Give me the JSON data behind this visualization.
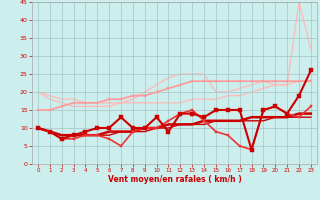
{
  "xlabel": "Vent moyen/en rafales ( km/h )",
  "bg_color": "#cceeed",
  "grid_color": "#aacccc",
  "xlim": [
    -0.5,
    23.5
  ],
  "ylim": [
    0,
    45
  ],
  "yticks": [
    0,
    5,
    10,
    15,
    20,
    25,
    30,
    35,
    40,
    45
  ],
  "xticks": [
    0,
    1,
    2,
    3,
    4,
    5,
    6,
    7,
    8,
    9,
    10,
    11,
    12,
    13,
    14,
    15,
    16,
    17,
    18,
    19,
    20,
    21,
    22,
    23
  ],
  "series": [
    {
      "x": [
        0,
        1,
        2,
        3,
        4,
        5,
        6,
        7,
        8,
        9,
        10,
        11,
        12,
        13,
        14,
        15,
        16,
        17,
        18,
        19,
        20,
        21,
        22,
        23
      ],
      "y": [
        20,
        19,
        18,
        18,
        17,
        17,
        17,
        17,
        17,
        17,
        17,
        17,
        17,
        18,
        18,
        18,
        19,
        19,
        20,
        21,
        22,
        22,
        23,
        23
      ],
      "color": "#ffbbbb",
      "lw": 1.0,
      "marker": null,
      "zorder": 1
    },
    {
      "x": [
        0,
        1,
        2,
        3,
        4,
        5,
        6,
        7,
        8,
        9,
        10,
        11,
        12,
        13,
        14,
        15,
        16,
        17,
        18,
        19,
        20,
        21,
        22,
        23
      ],
      "y": [
        20,
        18,
        17,
        16,
        16,
        16,
        16,
        17,
        18,
        20,
        22,
        24,
        25,
        25,
        25,
        20,
        20,
        21,
        22,
        23,
        22,
        22,
        45,
        32
      ],
      "color": "#ffbbbb",
      "lw": 1.0,
      "marker": null,
      "zorder": 1
    },
    {
      "x": [
        0,
        1,
        2,
        3,
        4,
        5,
        6,
        7,
        8,
        9,
        10,
        11,
        12,
        13,
        14,
        15,
        16,
        17,
        18,
        19,
        20,
        21,
        22,
        23
      ],
      "y": [
        15,
        15,
        16,
        17,
        17,
        17,
        18,
        18,
        19,
        19,
        20,
        21,
        22,
        23,
        23,
        23,
        23,
        23,
        23,
        23,
        23,
        23,
        23,
        23
      ],
      "color": "#ff9999",
      "lw": 1.2,
      "marker": "s",
      "ms": 2.0,
      "zorder": 2
    },
    {
      "x": [
        0,
        1,
        2,
        3,
        4,
        5,
        6,
        7,
        8,
        9,
        10,
        11,
        12,
        13,
        14,
        15,
        16,
        17,
        18,
        19,
        20,
        21,
        22,
        23
      ],
      "y": [
        10,
        9,
        7,
        8,
        9,
        10,
        10,
        13,
        10,
        10,
        13,
        9,
        14,
        14,
        13,
        15,
        15,
        15,
        4,
        15,
        16,
        14,
        19,
        26
      ],
      "color": "#cc0000",
      "lw": 1.5,
      "marker": "s",
      "ms": 2.5,
      "zorder": 4
    },
    {
      "x": [
        0,
        1,
        2,
        3,
        4,
        5,
        6,
        7,
        8,
        9,
        10,
        11,
        12,
        13,
        14,
        15,
        16,
        17,
        18,
        19,
        20,
        21,
        22,
        23
      ],
      "y": [
        10,
        9,
        7,
        7,
        8,
        8,
        7,
        5,
        9,
        10,
        10,
        12,
        14,
        15,
        12,
        9,
        8,
        5,
        4,
        15,
        16,
        14,
        13,
        16
      ],
      "color": "#ee3333",
      "lw": 1.2,
      "marker": "s",
      "ms": 2.0,
      "zorder": 3
    },
    {
      "x": [
        0,
        1,
        2,
        3,
        4,
        5,
        6,
        7,
        8,
        9,
        10,
        11,
        12,
        13,
        14,
        15,
        16,
        17,
        18,
        19,
        20,
        21,
        22,
        23
      ],
      "y": [
        10,
        9,
        8,
        8,
        8,
        8,
        9,
        9,
        9,
        10,
        10,
        11,
        11,
        11,
        12,
        12,
        12,
        12,
        13,
        13,
        13,
        13,
        14,
        14
      ],
      "color": "#cc0000",
      "lw": 1.8,
      "marker": null,
      "zorder": 2
    },
    {
      "x": [
        0,
        1,
        2,
        3,
        4,
        5,
        6,
        7,
        8,
        9,
        10,
        11,
        12,
        13,
        14,
        15,
        16,
        17,
        18,
        19,
        20,
        21,
        22,
        23
      ],
      "y": [
        10,
        9,
        8,
        8,
        8,
        8,
        8,
        9,
        9,
        9,
        10,
        10,
        11,
        11,
        11,
        12,
        12,
        12,
        12,
        12,
        13,
        13,
        13,
        13
      ],
      "color": "#cc0000",
      "lw": 1.0,
      "marker": null,
      "zorder": 2
    }
  ]
}
